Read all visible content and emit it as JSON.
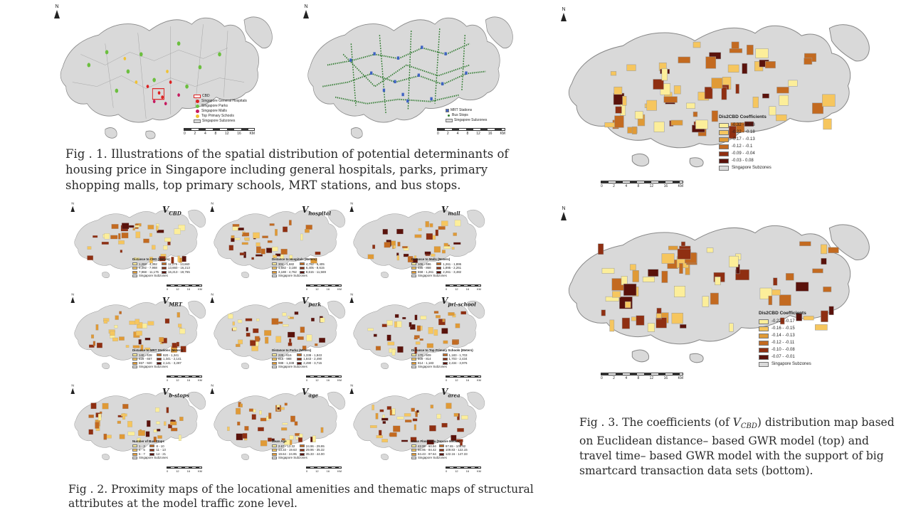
{
  "colors": {
    "land": "#d9d9d9",
    "c1": "#fcee9a",
    "c2": "#f6c65e",
    "c3": "#e09a36",
    "c4": "#c36a20",
    "c5": "#8f2f12",
    "c6": "#5a120b",
    "mrt": "#3f63c2",
    "bus": "#2f7a2f"
  },
  "north_label": "N",
  "scale": {
    "ticks": [
      "0",
      "2",
      "4",
      "8",
      "12",
      "16"
    ],
    "unit": "KM"
  },
  "fig1": {
    "legend_left": [
      "CBD",
      "Singapore General Hospitals",
      "Singapore Parks",
      "Singapore Malls",
      "Top Primary Schools",
      "Singapore Subzones"
    ],
    "legend_right": [
      "MRT Stations",
      "Bus Stops",
      "Singapore Subzones"
    ],
    "caption": "Fig . 1. Illustrations of the spatial distribution of potential determinants of housing price in Singapore including general hospitals, parks, primary shopping malls, top primary schools, MRT stations, and bus stops."
  },
  "fig2": {
    "maps": [
      {
        "var": "V",
        "sub": "CBD",
        "legend_title": "Distance to CBD (Meters)",
        "ranges": [
          "1,283 - 4,392",
          "4,392 - 7,968",
          "7,968 - 11,175",
          "11,175 - 13,660",
          "13,660 - 16,213",
          "16,213 - 19,765"
        ]
      },
      {
        "var": "V",
        "sub": "hospital",
        "legend_title": "Distance to Hospitals (Meters)",
        "ranges": [
          "304 - 1,682",
          "1,682 - 3,188",
          "3,188 - 4,762",
          "4,762 - 6,405",
          "6,405 - 8,615",
          "8,615 - 11,569"
        ]
      },
      {
        "var": "V",
        "sub": "mall",
        "legend_title": "Distance to Malls (Meters)",
        "ranges": [
          "106 - 486",
          "486 - 868",
          "868 - 1,261",
          "1,261 - 1,895",
          "1,895 - 2,261",
          "2,261 - 3,482"
        ]
      },
      {
        "var": "V",
        "sub": "MRT",
        "legend_title": "Distance to MRT Stations (Meters)",
        "ranges": [
          "140 - 428",
          "428 - 657",
          "657 - 920",
          "920 - 1,341",
          "1,341 - 2,141",
          "2,141 - 3,287"
        ]
      },
      {
        "var": "V",
        "sub": "park",
        "legend_title": "Distance to Parks (Meters)",
        "ranges": [
          "229 - 616",
          "616 - 988",
          "988 - 1,338",
          "1,338 - 1,843",
          "1,843 - 2,490",
          "2,490 - 3,715"
        ]
      },
      {
        "var": "V",
        "sub": "pri-school",
        "legend_title": "Distance to Top Primary Schools (Meters)",
        "ranges": [
          "170 - 509",
          "509 - 814",
          "814 - 1,183",
          "1,183 - 1,703",
          "1,703 - 2,434",
          "2,434 - 3,976"
        ]
      },
      {
        "var": "V",
        "sub": "b-stops",
        "legend_title": "Number of Bus Stops",
        "ranges": [
          "1 - 3",
          "4 - 5",
          "6 - 7",
          "8 - 10",
          "11 - 13",
          "14 - 21"
        ]
      },
      {
        "var": "V",
        "sub": "age",
        "legend_title": "Mean Age",
        "ranges": [
          "2.67 - 13.32",
          "13.33 - 19.63",
          "19.64 - 24.95",
          "24.96 - 29.95",
          "29.96 - 35.32",
          "35.33 - 44.00"
        ]
      },
      {
        "var": "V",
        "sub": "area",
        "legend_title": "Mean Floor Area (Square Meters)",
        "ranges": [
          "42.00 - 60.94",
          "60.95 - 84.42",
          "84.43 - 97.64",
          "97.65 - 109.82",
          "109.83 - 122.15",
          "122.16 - 147.33"
        ]
      }
    ],
    "subzones_label": "Singapore Subzones",
    "caption": "Fig . 2. Proximity maps of the locational amenities and thematic maps of structural attributes at the model traffic zone level."
  },
  "fig3": {
    "top": {
      "legend_title": "Dis2CBD Coefficients",
      "ranges": [
        "-0.32 - -0.23",
        "-0.22 - -0.18",
        "-0.17 - -0.13",
        "-0.12 - -0.1",
        "-0.09 - -0.04",
        "-0.03 - 0.08"
      ]
    },
    "bottom": {
      "legend_title": "Dis2CBD Coefficients",
      "ranges": [
        "-0.22 - -0.17",
        "-0.16 - -0.15",
        "-0.14 - -0.13",
        "-0.12 - -0.11",
        "-0.10 - -0.08",
        "-0.07 - -0.01"
      ]
    },
    "subzones_label": "Singapore Subzones",
    "caption_pre": "Fig . 3. The coefficients (of ",
    "caption_var": "V",
    "caption_sub": "CBD",
    "caption_post": ") distribution map based on Euclidean distance– based GWR model (top) and travel time– based GWR model with the support of big smartcard transaction data sets (bottom)."
  }
}
